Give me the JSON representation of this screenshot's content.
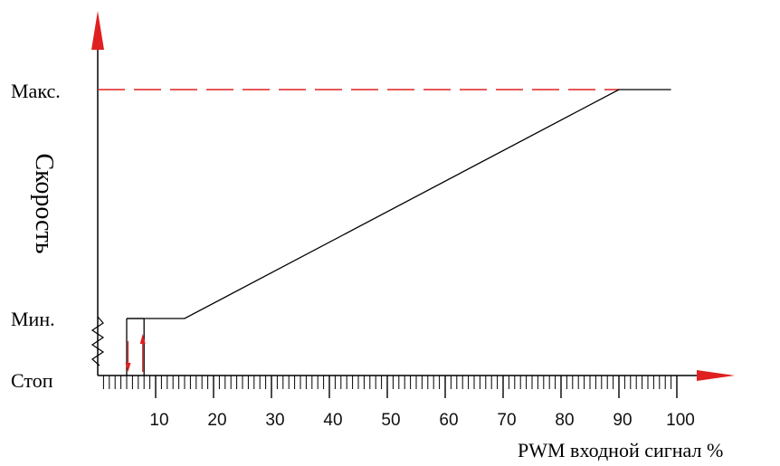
{
  "chart_data": {
    "type": "line",
    "title": "",
    "xlabel": "PWM входной сигнал %",
    "ylabel": "Скорость",
    "x_ticks": [
      10,
      20,
      30,
      40,
      50,
      60,
      70,
      80,
      90,
      100
    ],
    "xlim": [
      0,
      100
    ],
    "y_levels": {
      "stop": "Стоп",
      "min": "Мин.",
      "max": "Макс."
    },
    "series": [
      {
        "points": [
          {
            "x": 5,
            "y": "Мин."
          },
          {
            "x": 15,
            "y": "Мин."
          },
          {
            "x": 90,
            "y": "Макс."
          },
          {
            "x": 99,
            "y": "Макс."
          }
        ],
        "color": "#000000"
      }
    ],
    "max_reference_line": {
      "style": "dashed",
      "color": "#e02020"
    },
    "hysteresis": {
      "off_x": 5,
      "on_x": 8,
      "arrow_color": "#e02020"
    },
    "axis_arrow_color": "#e02020",
    "grid": false
  }
}
